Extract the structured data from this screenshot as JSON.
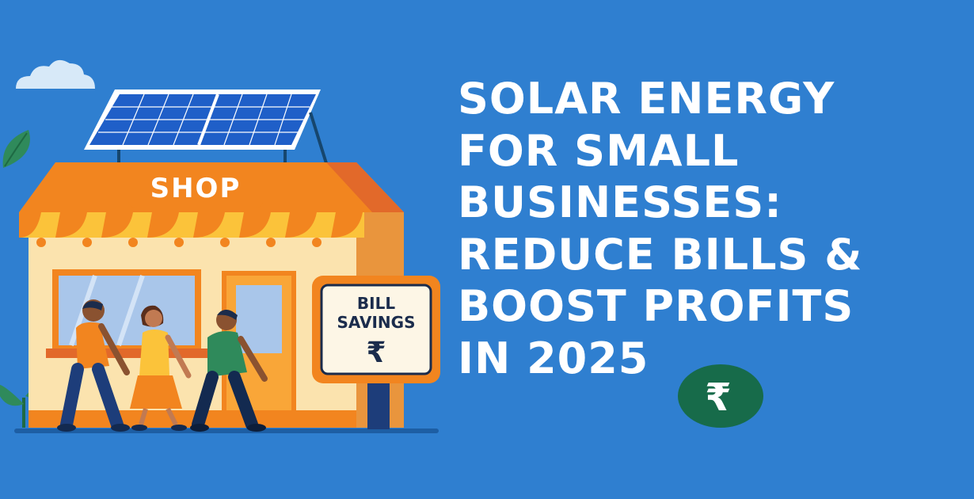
{
  "headline": {
    "lines": [
      "SOLAR ENERGY",
      "FOR SMALL",
      "BUSINESSES:",
      "REDUCE BILLS &",
      "BOOST PROFITS",
      "IN 2025"
    ]
  },
  "shop": {
    "sign_label": "SHOP"
  },
  "savings_sign": {
    "line1": "BILL",
    "line2": "SAVINGS",
    "symbol": "₹"
  },
  "badge": {
    "symbol": "₹"
  },
  "icons": [
    "cloud-icon",
    "leaf-icon",
    "plant-icon",
    "solar-panel-icon",
    "rupee-coin-icon"
  ],
  "colors": {
    "background": "#2f7fd0",
    "headline": "#ffffff",
    "awning_orange": "#f2851f",
    "awning_yellow": "#fbc33a",
    "wall": "#fbe3ae",
    "panel_blue": "#1f5fc8",
    "coin_green": "#176b4a"
  }
}
